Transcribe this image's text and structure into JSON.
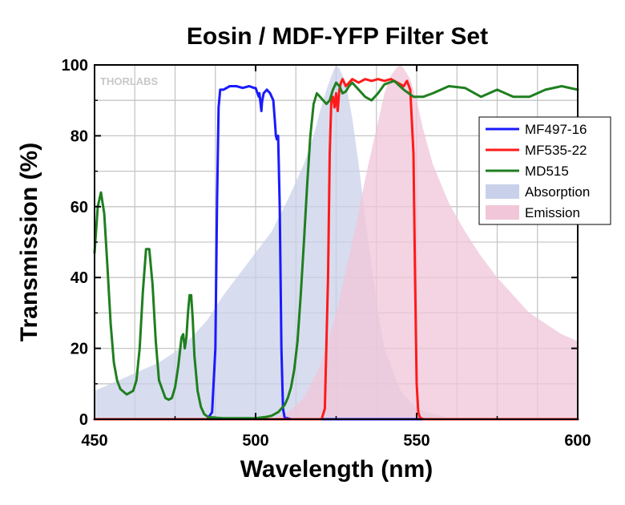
{
  "chart_data": {
    "type": "line",
    "title": "Eosin / MDF-YFP Filter Set",
    "xlabel": "Wavelength (nm)",
    "ylabel": "Transmission (%)",
    "xlim": [
      450,
      600
    ],
    "ylim": [
      0,
      100
    ],
    "xticks": [
      450,
      500,
      550,
      600
    ],
    "yticks": [
      0,
      20,
      40,
      60,
      80,
      100
    ],
    "grid": true,
    "legend_position": "right",
    "watermark": "THORLABS",
    "colors": {
      "MF497-16": "#1a1aff",
      "MF535-22": "#ff1a1a",
      "MD515": "#1f7f1f",
      "Absorption": "#c9d1ea",
      "Emission": "#f0c6d8"
    },
    "series": [
      {
        "name": "MF497-16",
        "style": "line",
        "x": [
          450,
          485,
          486.5,
          487.5,
          488,
          488.5,
          489,
          490,
          492,
          494,
          496,
          498,
          499.5,
          500,
          501,
          501.2,
          501.8,
          502,
          502.5,
          503.5,
          504.5,
          505.5,
          506,
          506.3,
          506.6,
          507,
          507.5,
          508,
          508.5,
          509,
          511,
          600
        ],
        "y": [
          0,
          0,
          2,
          20,
          60,
          88,
          93,
          93,
          94,
          94,
          93.5,
          94,
          93.5,
          93.5,
          91,
          92,
          87,
          89.5,
          92,
          93,
          92,
          90,
          84,
          80,
          79,
          80,
          60,
          20,
          3,
          0.5,
          0,
          0
        ]
      },
      {
        "name": "MF535-22",
        "style": "line",
        "x": [
          450,
          520.5,
          521.5,
          522.5,
          523,
          523.5,
          524,
          524.5,
          525,
          525.5,
          526,
          526.5,
          527,
          528,
          529,
          530,
          532,
          534,
          536,
          538,
          540,
          542,
          544,
          546,
          547,
          548,
          549,
          549.5,
          550,
          550.5,
          551,
          552,
          600
        ],
        "y": [
          0,
          0,
          3,
          40,
          75,
          90,
          91,
          88,
          92,
          87,
          93,
          95,
          96,
          94,
          95,
          96,
          95,
          96,
          95.5,
          96,
          95.5,
          96,
          95,
          94,
          95.5,
          93,
          75,
          40,
          10,
          2,
          0.5,
          0,
          0
        ]
      },
      {
        "name": "MD515",
        "style": "line",
        "x": [
          450,
          451,
          452,
          453,
          454,
          455,
          456,
          457,
          458,
          460,
          462,
          463,
          464,
          465,
          466,
          467,
          468,
          469,
          470,
          472,
          473,
          474,
          475,
          476,
          477,
          477.5,
          478,
          478.5,
          479,
          479.5,
          480,
          480.5,
          481,
          482,
          483,
          484,
          485,
          486,
          487,
          488,
          490,
          495,
          500,
          503,
          505,
          507,
          509,
          510,
          511,
          512,
          513,
          514,
          515,
          516,
          517,
          518,
          519,
          520,
          521,
          522,
          523,
          524,
          525,
          526,
          527,
          528,
          529,
          530,
          532,
          534,
          536,
          538,
          540,
          543,
          546,
          549,
          552,
          555,
          560,
          565,
          570,
          575,
          580,
          585,
          590,
          595,
          600
        ],
        "y": [
          47,
          60,
          64,
          58,
          43,
          27,
          16,
          11,
          8.5,
          7,
          8,
          11,
          20,
          36,
          48,
          48,
          38,
          22,
          11,
          6,
          5.5,
          6,
          9,
          15,
          23,
          24,
          20,
          23,
          30,
          35,
          35,
          28,
          18,
          8,
          3.5,
          1.5,
          0.8,
          0.5,
          0.5,
          0.4,
          0.3,
          0.3,
          0.3,
          0.6,
          1,
          2,
          4,
          6,
          9,
          14,
          22,
          35,
          50,
          66,
          80,
          89,
          92,
          91,
          90,
          89,
          90,
          93,
          95,
          94,
          92,
          92.5,
          94,
          95,
          93,
          91,
          90,
          92,
          94.5,
          95.5,
          93,
          91,
          91,
          92,
          94,
          93.5,
          91,
          93,
          91,
          91,
          93,
          94,
          93
        ]
      },
      {
        "name": "Absorption",
        "style": "area",
        "x": [
          450,
          455,
          460,
          465,
          470,
          475,
          480,
          485,
          490,
          495,
          500,
          505,
          510,
          515,
          518,
          520,
          522,
          524,
          525,
          526,
          528,
          530,
          532,
          535,
          538,
          540,
          545,
          550,
          555,
          560,
          600
        ],
        "y": [
          8,
          10,
          12,
          14,
          16,
          19,
          23,
          28,
          35,
          41,
          47,
          53,
          62,
          72,
          80,
          87,
          93,
          98,
          100,
          99,
          95,
          85,
          72,
          50,
          30,
          20,
          8,
          3,
          1.5,
          0.5,
          0
        ]
      },
      {
        "name": "Emission",
        "style": "area",
        "x": [
          450,
          505,
          510,
          515,
          520,
          525,
          530,
          535,
          538,
          540,
          542,
          544,
          545,
          546,
          548,
          550,
          552,
          555,
          560,
          565,
          570,
          575,
          580,
          585,
          590,
          595,
          600
        ],
        "y": [
          0,
          0,
          2,
          6,
          15,
          30,
          50,
          72,
          84,
          92,
          97,
          99.5,
          100,
          99,
          96,
          90,
          82,
          72,
          61,
          53,
          46,
          40,
          35,
          30,
          27,
          24,
          22
        ]
      }
    ]
  }
}
